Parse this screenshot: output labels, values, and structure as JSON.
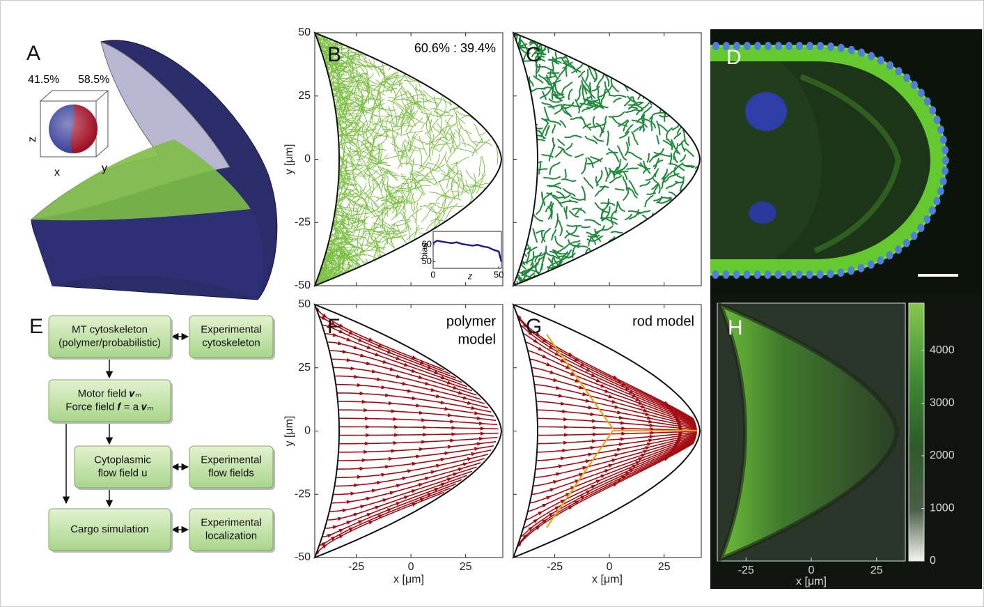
{
  "panels": {
    "A": {
      "label": "A",
      "left_fraction": "41.5%",
      "right_fraction": "58.5%",
      "axis_labels": {
        "z": "z",
        "x": "x",
        "y": "y"
      }
    },
    "B": {
      "label": "B",
      "ratio": "60.6% : 39.4%",
      "inset": {
        "xlabel": "z",
        "ylabel": "bias",
        "xlim": [
          0,
          52
        ],
        "ylim": [
          46,
          68
        ],
        "xticks": [
          0,
          50
        ],
        "yticks": [
          50,
          60
        ],
        "z": [
          0,
          3,
          6,
          10,
          14,
          18,
          22,
          26,
          30,
          34,
          38,
          42,
          46,
          50,
          52
        ],
        "bias": [
          61,
          62.5,
          62,
          61.5,
          61,
          61.5,
          60.5,
          60,
          59.5,
          60,
          59,
          58.5,
          57,
          56,
          50
        ]
      }
    },
    "C": {
      "label": "C"
    },
    "D": {
      "label": "D"
    },
    "E": {
      "label": "E",
      "boxes": [
        {
          "lines": [
            "MT cytoskeleton",
            "(polymer/probabilistic)"
          ]
        },
        {
          "lines": [
            "Experimental",
            "cytoskeleton"
          ]
        },
        {
          "lines": [
            "Motor field 𝒗ₘ",
            "Force field 𝒇 = a 𝒗ₘ"
          ]
        },
        {
          "lines": [
            "Cytoplasmic",
            "flow field u"
          ]
        },
        {
          "lines": [
            "Experimental",
            "flow fields"
          ]
        },
        {
          "lines": [
            "Cargo simulation"
          ]
        },
        {
          "lines": [
            "Experimental",
            "localization"
          ]
        }
      ]
    },
    "F": {
      "label": "F",
      "annotation": [
        "polymer",
        "model"
      ]
    },
    "G": {
      "label": "G",
      "annotation": "rod model"
    },
    "H": {
      "label": "H",
      "xlim": [
        -36,
        36
      ],
      "colorbar": {
        "lim": [
          0,
          4900
        ],
        "ticks": [
          0,
          1000,
          2000,
          3000,
          4000
        ]
      }
    }
  },
  "axes": {
    "xlabel": "x [μm]",
    "ylabel": "y [μm]",
    "xlim": [
      -44,
      42
    ],
    "ylim": [
      -50,
      50
    ],
    "xticks": [
      -25,
      0,
      25
    ],
    "yticks": [
      -50,
      -25,
      0,
      25,
      50
    ]
  }
}
